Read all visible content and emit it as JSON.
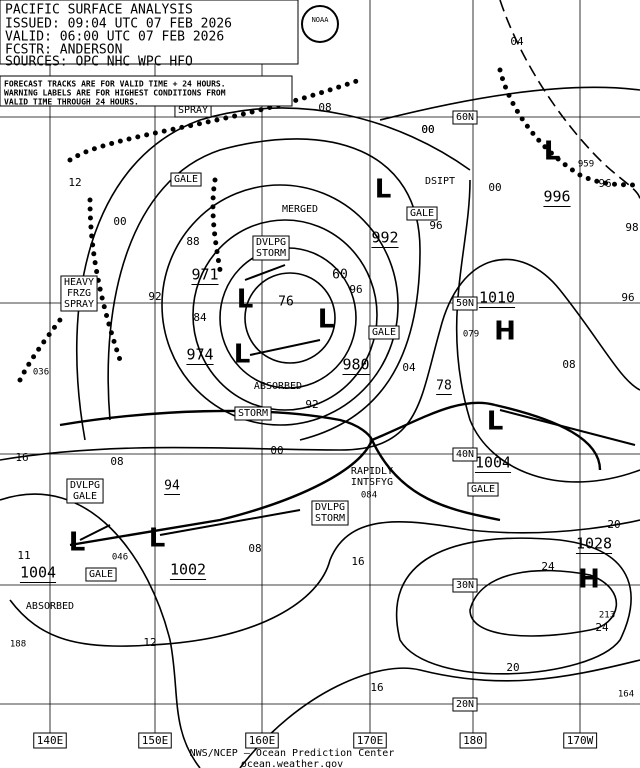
{
  "header": {
    "lines": [
      "PACIFIC SURFACE ANALYSIS",
      "ISSUED: 09:04 UTC 07 FEB 2026",
      "VALID:  06:00 UTC 07 FEB 2026",
      "FCSTR:  ANDERSON",
      "SOURCES: OPC NHC WPC HFO"
    ]
  },
  "note": {
    "lines": [
      "FORECAST TRACKS ARE FOR VALID TIME + 24 HOURS.",
      "WARNING LABELS ARE FOR HIGHEST CONDITIONS FROM",
      "VALID TIME THROUGH 24 HOURS."
    ]
  },
  "logo": "NOAA",
  "grid": {
    "lat": [
      "60N",
      "50N",
      "40N",
      "30N",
      "20N"
    ],
    "lon": [
      "140E",
      "150E",
      "160E",
      "170E",
      "180",
      "170W"
    ]
  },
  "systems": [
    "L",
    "L",
    "L",
    "L",
    "L",
    "L",
    "L",
    "L",
    "H",
    "H"
  ],
  "pressures": [
    "971",
    "974",
    "980",
    "992",
    "996",
    "1010",
    "1004",
    "1028",
    "1002",
    "1004",
    "78",
    "94",
    "60",
    "76"
  ],
  "warnings": [
    [
      "SPRAY"
    ],
    [
      "GALE"
    ],
    [
      "MERGED"
    ],
    [
      "DVLPG",
      "STORM"
    ],
    [
      "HEAVY",
      "FRZG",
      "SPRAY"
    ],
    [
      "ABSORBED"
    ],
    [
      "STORM"
    ],
    [
      "GALE"
    ],
    [
      "RAPIDLY",
      "INTSFYG"
    ],
    [
      "DVLPG",
      "GALE"
    ],
    [
      "DVLPG",
      "STORM"
    ],
    [
      "GALE"
    ],
    [
      "GALE"
    ],
    [
      "GALE"
    ],
    [
      "ABSORBED"
    ],
    [
      "DSIPT"
    ]
  ],
  "isobar_labels": [
    "04",
    "00",
    "08",
    "12",
    "00",
    "88",
    "92",
    "84",
    "96",
    "00",
    "08",
    "16",
    "00",
    "92",
    "04",
    "08",
    "20",
    "24",
    "20",
    "16",
    "12",
    "96",
    "959",
    "96",
    "98",
    "079",
    "084",
    "046",
    "213",
    "24",
    "188",
    "164",
    "11",
    "036",
    "08",
    "00",
    "16",
    "96"
  ],
  "footer": {
    "lines": [
      "NWS/NCEP — Ocean Prediction Center",
      "ocean.weather.gov"
    ]
  }
}
